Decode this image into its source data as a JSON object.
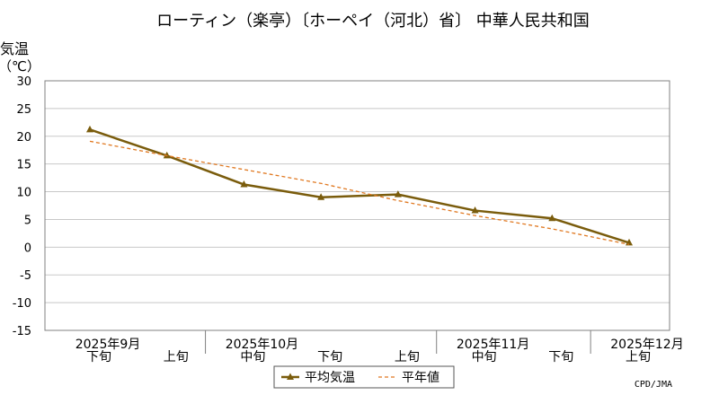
{
  "chart_data": {
    "type": "line",
    "title": "ローティン（楽亭）〔ホーペイ（河北）省〕 中華人民共和国",
    "ylabel": "気温",
    "yunit": "（℃）",
    "ylim": [
      -15,
      30
    ],
    "yticks": [
      30,
      25,
      20,
      15,
      10,
      5,
      0,
      -5,
      -10,
      -15
    ],
    "grid": true,
    "x_labels": [
      "下旬",
      "上旬",
      "中旬",
      "下旬",
      "上旬",
      "中旬",
      "下旬",
      "上旬"
    ],
    "month_labels": [
      {
        "label": "2025年9月",
        "index": 0
      },
      {
        "label": "2025年10月",
        "index": 2
      },
      {
        "label": "2025年11月",
        "index": 5
      },
      {
        "label": "2025年12月",
        "index": 7
      }
    ],
    "month_dividers": [
      1.5,
      4.5,
      6.5
    ],
    "series": [
      {
        "name": "平均気温",
        "values": [
          21.2,
          16.5,
          11.3,
          9.0,
          9.5,
          6.6,
          5.2,
          0.8
        ],
        "color": "#7a5c0c",
        "style": "solid",
        "marker": "triangle"
      },
      {
        "name": "平年値",
        "values": [
          19.1,
          16.5,
          14.0,
          11.5,
          8.4,
          5.7,
          3.3,
          0.5
        ],
        "color": "#e07820",
        "style": "dashed",
        "marker": "none"
      }
    ],
    "legend_position": "bottom-center",
    "credit": "CPD/JMA"
  }
}
